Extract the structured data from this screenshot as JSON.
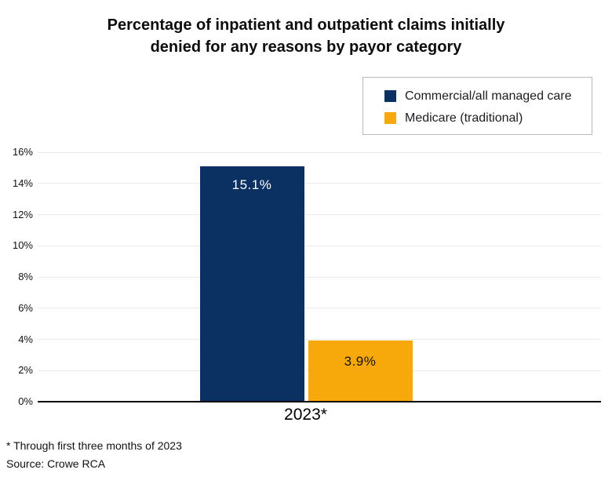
{
  "title_lines": [
    "Percentage of inpatient and outpatient claims initially",
    "denied for any reasons by payor category"
  ],
  "legend": {
    "items": [
      {
        "label": "Commercial/all managed care",
        "color": "#0a3161"
      },
      {
        "label": "Medicare (traditional)",
        "color": "#f7a80a"
      }
    ]
  },
  "footnotes": {
    "note": "* Through first three months of 2023",
    "source": "Source: Crowe RCA"
  },
  "chart_data": {
    "type": "bar",
    "title": "Percentage of inpatient and outpatient claims initially denied for any reasons by payor category",
    "categories": [
      "2023*"
    ],
    "series": [
      {
        "name": "Commercial/all managed care",
        "values": [
          15.1
        ],
        "data_label": "15.1%",
        "color": "#0a3161",
        "label_color": "#ffffff"
      },
      {
        "name": "Medicare (traditional)",
        "values": [
          3.9
        ],
        "data_label": "3.9%",
        "color": "#f7a80a",
        "label_color": "#151515"
      }
    ],
    "xlabel": "",
    "ylabel": "",
    "ylim": [
      0,
      16
    ],
    "yticks": [
      "0%",
      "2%",
      "4%",
      "6%",
      "8%",
      "10%",
      "12%",
      "14%",
      "16%"
    ],
    "grid": true,
    "gridline_color": "#ebebeb",
    "baseline_color": "#000000",
    "legend_position": "top-right",
    "footnote": "* Through first three months of 2023",
    "source": "Source: Crowe RCA"
  }
}
